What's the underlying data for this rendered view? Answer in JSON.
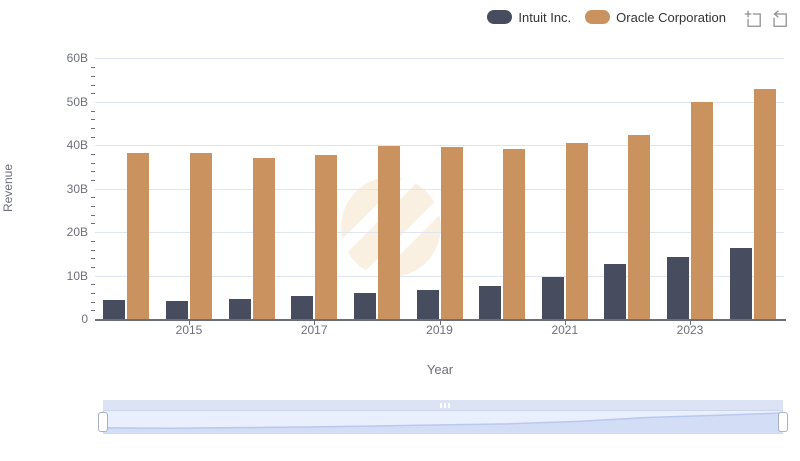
{
  "legend": {
    "items": [
      {
        "label": "Intuit Inc.",
        "color": "#474C5F"
      },
      {
        "label": "Oracle Corporation",
        "color": "#C9925F"
      }
    ]
  },
  "toolbox": {
    "icons": [
      {
        "name": "data-zoom-icon"
      },
      {
        "name": "zoom-restore-icon"
      }
    ],
    "color": "#8F8F8F"
  },
  "chart_data": {
    "type": "bar",
    "title": "",
    "xlabel": "Year",
    "ylabel": "Revenue",
    "unit": "B",
    "categories": [
      "2014",
      "2015",
      "2016",
      "2017",
      "2018",
      "2019",
      "2020",
      "2021",
      "2022",
      "2023",
      "2024"
    ],
    "series": [
      {
        "name": "Intuit Inc.",
        "color": "#474C5F",
        "values": [
          4.5,
          4.2,
          4.7,
          5.2,
          6.0,
          6.8,
          7.7,
          9.6,
          12.7,
          14.4,
          16.3
        ]
      },
      {
        "name": "Oracle Corporation",
        "color": "#C9925F",
        "values": [
          38.3,
          38.2,
          37.0,
          37.7,
          39.8,
          39.5,
          39.1,
          40.5,
          42.4,
          50.0,
          53.0
        ]
      }
    ],
    "ylim": [
      0,
      60
    ],
    "ytick_labels": [
      "0",
      "10B",
      "20B",
      "30B",
      "40B",
      "50B",
      "60B"
    ],
    "xtick_labels_shown": [
      "2015",
      "2017",
      "2019",
      "2021",
      "2023"
    ],
    "grid": true,
    "legend_position": "top-right"
  },
  "watermark": {
    "name": "z-logo-watermark",
    "color": "#FAF0E1"
  },
  "slider": {
    "strip_color": "#DCE3F4",
    "track_color": "#E9EFFC",
    "shadow_line_color": "#B9C8EE",
    "shadow_fill_color": "#D3DDF6",
    "handle_border": "#A7B0C8"
  },
  "colors": {
    "background": "#FFFFFF",
    "axis_text": "#6E7079",
    "gridline": "#E0E6F1",
    "axis_line": "#696E78",
    "legend_text": "#333333"
  }
}
